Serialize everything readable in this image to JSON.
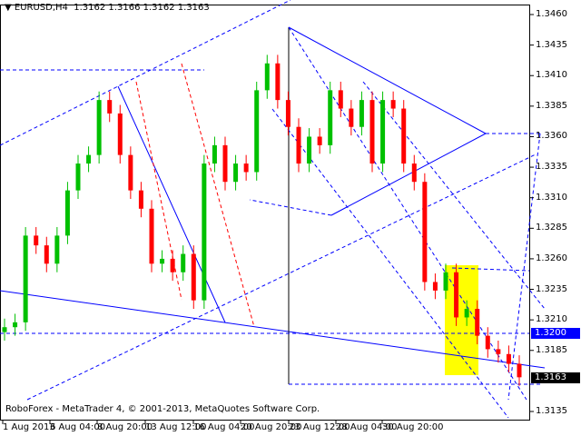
{
  "header": {
    "symbol": "EURUSD,H4",
    "ohlc": "1.3162 1.3166 1.3162 1.3163"
  },
  "footer": {
    "copyright": "RoboForex - MetaTrader 4, © 2001-2013, MetaQuotes Software Corp."
  },
  "chart_data": {
    "type": "candlestick",
    "title": "EURUSD,H4",
    "ylim": [
      1.3128,
      1.3472
    ],
    "y_ticks": [
      "1.3460",
      "1.3435",
      "1.3410",
      "1.3385",
      "1.3360",
      "1.3335",
      "1.3310",
      "1.3285",
      "1.3260",
      "1.3235",
      "1.3210",
      "1.3185",
      "1.3135"
    ],
    "x_ticks": [
      "1 Aug 2013",
      "6 Aug 04:00",
      "8 Aug 20:00",
      "13 Aug 12:00",
      "16 Aug 04:00",
      "20 Aug 20:00",
      "23 Aug 12:00",
      "28 Aug 04:00",
      "30 Aug 20:00"
    ],
    "closes": [
      1.3204,
      1.3208,
      1.3279,
      1.3271,
      1.3256,
      1.3279,
      1.3316,
      1.3338,
      1.3345,
      1.339,
      1.3379,
      1.3345,
      1.3316,
      1.3301,
      1.3256,
      1.326,
      1.3249,
      1.3264,
      1.3226,
      1.3338,
      1.3353,
      1.3323,
      1.3338,
      1.3331,
      1.3398,
      1.342,
      1.339,
      1.3368,
      1.3338,
      1.336,
      1.3353,
      1.3398,
      1.3383,
      1.3368,
      1.339,
      1.3338,
      1.339,
      1.3383,
      1.3338,
      1.3323,
      1.3241,
      1.3234,
      1.3249,
      1.3212,
      1.3219,
      1.3197,
      1.3186,
      1.3182,
      1.3174,
      1.3163
    ],
    "level_line": {
      "value": "1.3200",
      "color": "#0000ff"
    },
    "current_price": {
      "value": "1.3163",
      "color": "#000000"
    },
    "colors": {
      "bull": "#00c000",
      "bear": "#ff0000",
      "lines": "#0000ff",
      "highlight": "#ffff00"
    },
    "grid": false
  }
}
